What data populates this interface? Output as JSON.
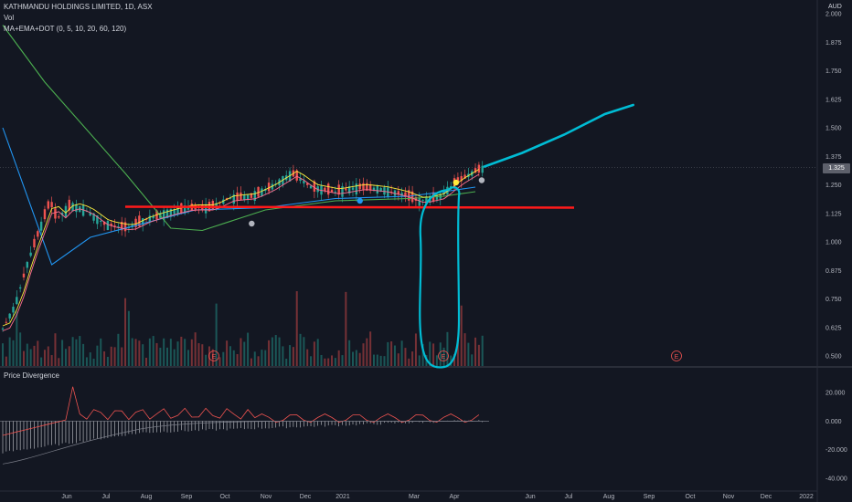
{
  "header": {
    "title": "KATHMANDU HOLDINGS LIMITED, 1D, ASX",
    "vol_label": "Vol",
    "indicator_label": "MA+EMA+DOT (0, 5, 10, 20, 60, 120)",
    "currency": "AUD",
    "last_price": "1.325"
  },
  "lower_pane": {
    "title": "Price Divergence"
  },
  "colors": {
    "background": "#131722",
    "up": "#26a69a",
    "down": "#ef5350",
    "annotation_line": "#ff1a1a",
    "annotation_curve": "#00bcd4",
    "ma_blue": "#2196f3",
    "ma_green": "#4caf50",
    "ma_yellow": "#ffeb3b",
    "ma_pink": "#ff6f91"
  },
  "chart_data": [
    {
      "type": "candlestick",
      "name": "main",
      "x_ticks": [
        "Jun",
        "Jul",
        "Aug",
        "Sep",
        "Oct",
        "Nov",
        "Dec",
        "2021",
        "Mar",
        "Apr",
        "Jun",
        "Jul",
        "Aug",
        "Sep",
        "Oct",
        "Nov",
        "Dec",
        "2022"
      ],
      "y_ticks": [
        "2.000",
        "1.875",
        "1.750",
        "1.625",
        "1.500",
        "1.375",
        "1.250",
        "1.125",
        "1.000",
        "0.875",
        "0.750",
        "0.625",
        "0.500"
      ],
      "ylim": [
        0.5,
        2.0
      ],
      "last_price": 1.325,
      "support_line": 1.15,
      "price_path": [
        [
          "2020-05-01",
          0.62
        ],
        [
          "2020-05-10",
          0.72
        ],
        [
          "2020-05-20",
          0.92
        ],
        [
          "2020-05-28",
          1.05
        ],
        [
          "2020-06-05",
          1.18
        ],
        [
          "2020-06-10",
          1.1
        ],
        [
          "2020-06-20",
          1.16
        ],
        [
          "2020-07-01",
          1.14
        ],
        [
          "2020-07-15",
          1.08
        ],
        [
          "2020-08-01",
          1.06
        ],
        [
          "2020-08-15",
          1.1
        ],
        [
          "2020-09-01",
          1.13
        ],
        [
          "2020-09-15",
          1.15
        ],
        [
          "2020-10-01",
          1.15
        ],
        [
          "2020-10-15",
          1.19
        ],
        [
          "2020-11-01",
          1.2
        ],
        [
          "2020-11-15",
          1.24
        ],
        [
          "2020-12-01",
          1.3
        ],
        [
          "2020-12-15",
          1.24
        ],
        [
          "2021-01-01",
          1.22
        ],
        [
          "2021-01-20",
          1.24
        ],
        [
          "2021-02-05",
          1.23
        ],
        [
          "2021-02-20",
          1.21
        ],
        [
          "2021-03-05",
          1.18
        ],
        [
          "2021-03-20",
          1.2
        ],
        [
          "2021-04-01",
          1.26
        ],
        [
          "2021-04-15",
          1.31
        ],
        [
          "2021-04-22",
          1.325
        ]
      ],
      "moving_averages": [
        {
          "color": "ma_blue",
          "values": [
            [
              0,
              1.5
            ],
            [
              14,
              0.9
            ],
            [
              25,
              1.02
            ],
            [
              45,
              1.1
            ],
            [
              55,
              1.14
            ],
            [
              75,
              1.15
            ],
            [
              95,
              1.19
            ],
            [
              116,
              1.2
            ],
            [
              126,
              1.22
            ],
            [
              135,
              1.24
            ]
          ]
        },
        {
          "color": "ma_green",
          "values": [
            [
              0,
              1.95
            ],
            [
              12,
              1.7
            ],
            [
              35,
              1.3
            ],
            [
              48,
              1.06
            ],
            [
              57,
              1.05
            ],
            [
              75,
              1.14
            ],
            [
              95,
              1.18
            ],
            [
              116,
              1.19
            ],
            [
              126,
              1.2
            ],
            [
              135,
              1.22
            ]
          ]
        }
      ],
      "markers": [
        {
          "date": "2020-11-01",
          "value": 1.08,
          "color": "#b2b5be"
        },
        {
          "date": "2021-01-20",
          "value": 1.18,
          "color": "#2196f3"
        },
        {
          "date": "2021-04-01",
          "value": 1.26,
          "color": "#ffeb3b"
        },
        {
          "date": "2021-04-20",
          "value": 1.27,
          "color": "#b2b5be"
        }
      ],
      "earnings_markers": [
        "E",
        "E",
        "E"
      ],
      "projection": [
        [
          "2021-04-22",
          1.33
        ],
        [
          "2021-05-20",
          1.39
        ],
        [
          "2021-06-20",
          1.47
        ],
        [
          "2021-07-20",
          1.56
        ],
        [
          "2021-08-10",
          1.6
        ]
      ]
    },
    {
      "type": "bar",
      "name": "Price Divergence",
      "y_ticks": [
        "20.000",
        "0.000",
        "-20.000",
        "-40.000"
      ],
      "ylim": [
        -40,
        20
      ]
    }
  ]
}
